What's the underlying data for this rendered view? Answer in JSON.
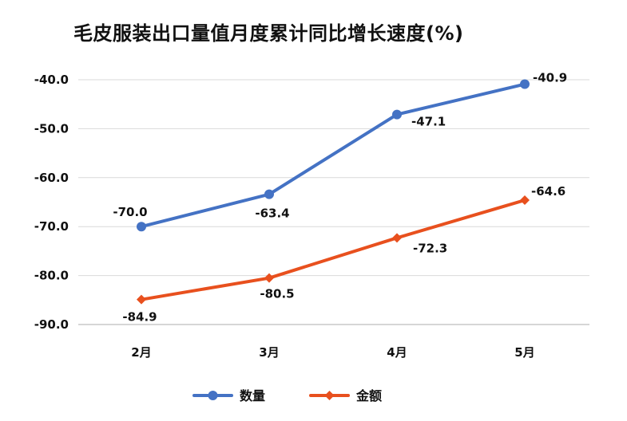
{
  "chart_data": {
    "type": "line",
    "title": "毛皮服装出口量值月度累计同比增长速度(%)",
    "xlabel": "",
    "ylabel": "",
    "categories": [
      "2月",
      "3月",
      "4月",
      "5月"
    ],
    "ylim": [
      -90.0,
      -40.0
    ],
    "yticks": [
      "-40.0",
      "-50.0",
      "-60.0",
      "-70.0",
      "-80.0",
      "-90.0"
    ],
    "grid": true,
    "legend_position": "bottom",
    "series": [
      {
        "name": "数量",
        "values": [
          -70.0,
          -63.4,
          -47.1,
          -40.9
        ],
        "labels": [
          "-70.0",
          "-63.4",
          "-47.1",
          "-40.9"
        ],
        "color": "#4472C4",
        "marker": "circle"
      },
      {
        "name": "金额",
        "values": [
          -84.9,
          -80.5,
          -72.3,
          -64.6
        ],
        "labels": [
          "-84.9",
          "-80.5",
          "-72.3",
          "-64.6"
        ],
        "color": "#E8501E",
        "marker": "diamond"
      }
    ]
  }
}
